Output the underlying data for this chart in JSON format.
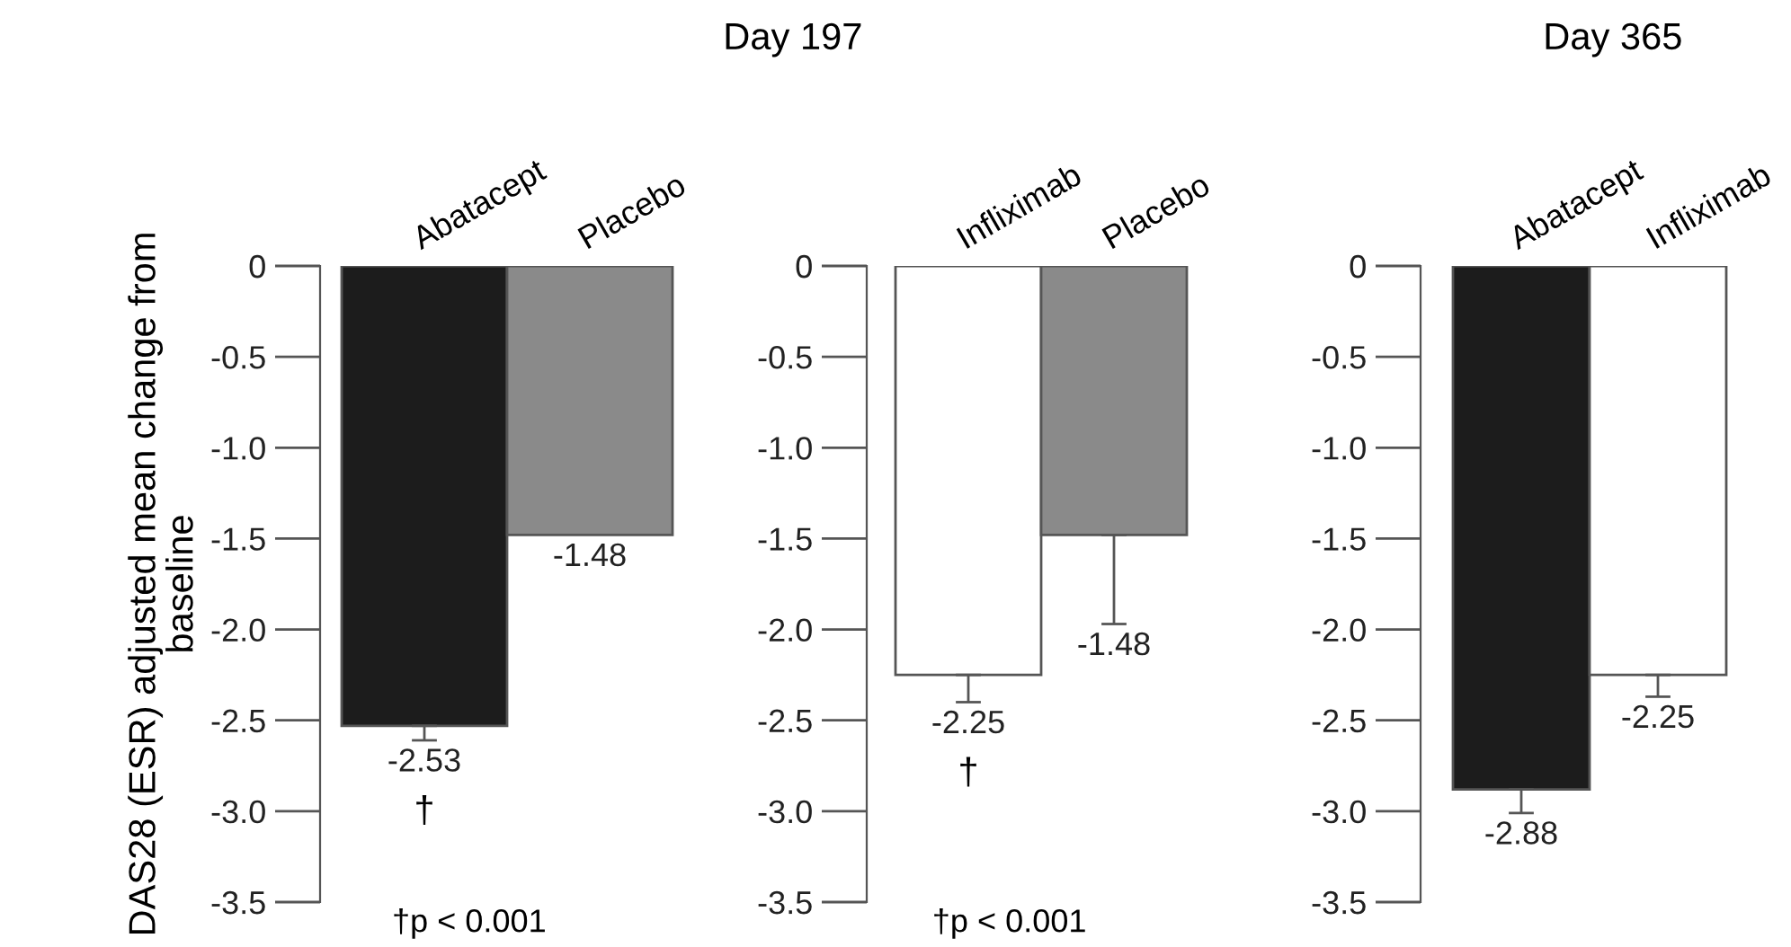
{
  "chart_data": [
    {
      "type": "bar",
      "title": "Day 197",
      "ylabel": "DAS28 (ESR) adjusted mean change from baseline",
      "categories": [
        "Abatacept",
        "Placebo"
      ],
      "values": [
        -2.53,
        -1.48
      ],
      "colors": [
        "#1c1c1c",
        "#8a8a8a"
      ],
      "errors": [
        0.08,
        null
      ],
      "data_labels": true,
      "ylim": [
        -3.5,
        0
      ],
      "yticks": [
        0,
        -0.5,
        {
          "value": -1,
          "label": "-1.0"
        },
        -1.5,
        {
          "value": -2,
          "label": "-2.0"
        },
        -2.5,
        {
          "value": -3,
          "label": "-3.0"
        },
        -3.5
      ],
      "grid": false,
      "annotations": [
        "†",
        "†p < 0.001"
      ]
    },
    {
      "type": "bar",
      "categories": [
        "Infliximab",
        "Placebo"
      ],
      "values": [
        -2.25,
        -1.48
      ],
      "colors": [
        "#ffffff",
        "#8a8a8a"
      ],
      "errors": [
        0.15,
        0.49
      ],
      "data_labels": true,
      "ylim": [
        -3.5,
        0
      ],
      "yticks": [
        0,
        -0.5,
        {
          "value": -1,
          "label": "-1.0"
        },
        -1.5,
        {
          "value": -2,
          "label": "-2.0"
        },
        -2.5,
        {
          "value": -3,
          "label": "-3.0"
        },
        -3.5
      ],
      "grid": false,
      "annotations": [
        "†",
        "†p < 0.001"
      ]
    },
    {
      "type": "bar",
      "title": "Day 365",
      "categories": [
        "Abatacept",
        "Infliximab"
      ],
      "values": [
        -2.88,
        -2.25
      ],
      "colors": [
        "#1c1c1c",
        "#ffffff"
      ],
      "errors": [
        0.13,
        0.12
      ],
      "data_labels": true,
      "ylim": [
        -3.5,
        0
      ],
      "yticks": [
        0,
        -0.5,
        {
          "value": -1,
          "label": "-1.0"
        },
        -1.5,
        {
          "value": -2,
          "label": "-2.0"
        },
        -2.5,
        {
          "value": -3,
          "label": "-3.0"
        },
        -3.5
      ],
      "grid": false
    }
  ]
}
